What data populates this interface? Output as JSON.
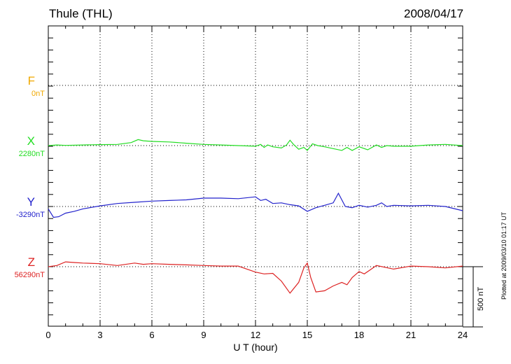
{
  "header": {
    "station": "Thule (THL)",
    "date": "2008/04/17"
  },
  "chart_data": {
    "type": "line",
    "title": "Thule (THL)",
    "date": "2008/04/17",
    "xlabel": "U T (hour)",
    "x_ticks": [
      "0",
      "3",
      "6",
      "9",
      "12",
      "15",
      "18",
      "21",
      "24"
    ],
    "xlim": [
      0,
      24
    ],
    "grid": true,
    "scale_bar": "500 nT",
    "plotted_note": "Plotted at 2009/03/10 01:17 UT",
    "units": "nT",
    "series": [
      {
        "name": "F",
        "baseline": "0nT",
        "color": "#f0a800",
        "x": [],
        "values": []
      },
      {
        "name": "X",
        "baseline": "2280nT",
        "color": "#22dd22",
        "x": [
          0,
          0.5,
          1,
          2,
          3,
          4,
          4.8,
          5.2,
          5.5,
          6,
          7,
          8,
          9,
          10,
          11,
          12,
          12.3,
          12.5,
          12.7,
          13,
          13.5,
          13.8,
          14,
          14.2,
          14.5,
          14.8,
          15,
          15.3,
          15.6,
          16,
          16.5,
          17,
          17.3,
          17.6,
          18,
          18.5,
          19,
          19.3,
          19.6,
          20,
          21,
          22,
          23,
          24
        ],
        "values": [
          0,
          5,
          2,
          5,
          8,
          10,
          25,
          50,
          40,
          35,
          30,
          20,
          10,
          5,
          0,
          -5,
          10,
          -15,
          5,
          -10,
          -20,
          5,
          45,
          10,
          -30,
          -15,
          -40,
          15,
          0,
          -10,
          -25,
          -40,
          -15,
          -40,
          -10,
          -35,
          5,
          -15,
          0,
          -5,
          -5,
          5,
          10,
          0
        ]
      },
      {
        "name": "Y",
        "baseline": "-3290nT",
        "color": "#2222cc",
        "x": [
          0,
          0.3,
          0.6,
          1,
          1.5,
          2,
          3,
          4,
          5,
          6,
          7,
          8,
          9,
          10,
          11,
          12,
          12.3,
          12.6,
          13,
          13.5,
          14,
          14.5,
          15,
          15.5,
          16,
          16.5,
          16.8,
          17.2,
          17.6,
          18,
          18.5,
          19,
          19.3,
          19.6,
          20,
          21,
          22,
          23,
          24
        ],
        "values": [
          -20,
          -90,
          -85,
          -55,
          -40,
          -20,
          5,
          25,
          35,
          45,
          50,
          55,
          70,
          70,
          65,
          80,
          50,
          60,
          25,
          30,
          15,
          5,
          -40,
          -10,
          10,
          30,
          110,
          0,
          -10,
          10,
          -5,
          10,
          30,
          0,
          10,
          5,
          10,
          0,
          -35
        ]
      },
      {
        "name": "Z",
        "baseline": "56290nT",
        "color": "#dd2222",
        "x": [
          0,
          0.5,
          1,
          1.5,
          2,
          3,
          4,
          5,
          5.5,
          6,
          7,
          8,
          9,
          10,
          11,
          11.5,
          12,
          12.5,
          13,
          13.5,
          14,
          14.5,
          14.8,
          15,
          15.2,
          15.5,
          16,
          16.5,
          17,
          17.3,
          17.6,
          18,
          18.3,
          18.6,
          19,
          20,
          21,
          22,
          23,
          24
        ],
        "values": [
          0,
          10,
          40,
          35,
          30,
          25,
          10,
          30,
          20,
          25,
          20,
          15,
          10,
          5,
          5,
          -20,
          -45,
          -60,
          -55,
          -120,
          -220,
          -130,
          -10,
          30,
          -90,
          -210,
          -200,
          -160,
          -130,
          -150,
          -90,
          -40,
          -60,
          -30,
          10,
          -20,
          5,
          0,
          -10,
          5
        ]
      }
    ]
  }
}
